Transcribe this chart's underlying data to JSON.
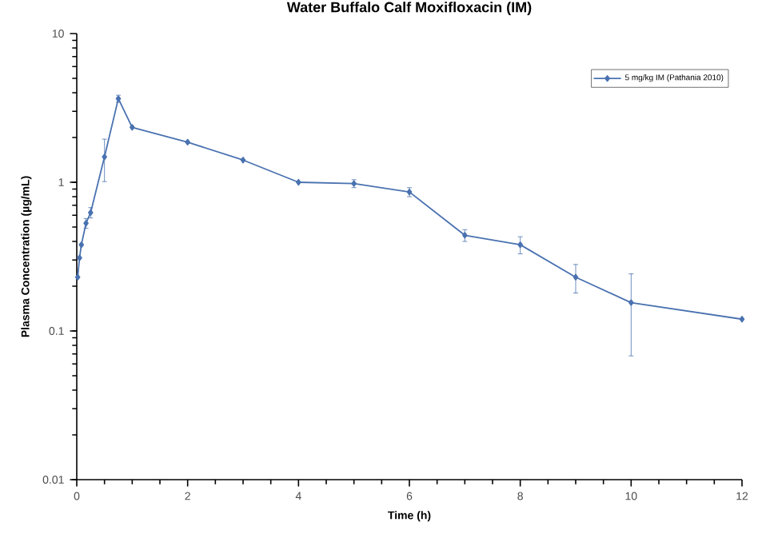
{
  "chart_data": {
    "type": "line",
    "title": "Water Buffalo Calf Moxifloxacin (IM)",
    "xlabel": "Time (h)",
    "ylabel": "Plasma Concentration (µg/mL)",
    "x": [
      0.017,
      0.05,
      0.083,
      0.167,
      0.25,
      0.5,
      0.75,
      1,
      2,
      3,
      4,
      5,
      6,
      7,
      8,
      9,
      10,
      12
    ],
    "series": [
      {
        "name": "5 mg/kg IM (Pathania 2010)",
        "color": "#4a72b0",
        "values": [
          0.23,
          0.31,
          0.38,
          0.53,
          0.625,
          1.48,
          3.65,
          2.34,
          1.86,
          1.41,
          1.0,
          0.98,
          0.86,
          0.44,
          0.38,
          0.23,
          0.155,
          0.12
        ],
        "errors": [
          null,
          null,
          null,
          0.04,
          0.05,
          0.47,
          0.2,
          null,
          null,
          null,
          null,
          0.06,
          0.06,
          0.04,
          0.05,
          0.05,
          0.087,
          null
        ]
      }
    ],
    "log": true,
    "xlim": [
      0,
      12
    ],
    "ylim": [
      0.01,
      10
    ],
    "xticks": [
      0,
      2,
      4,
      6,
      8,
      10,
      12
    ],
    "yticks": [
      0.01,
      0.1,
      1,
      10
    ],
    "legend": "top right",
    "marker": "diamond",
    "line_style": "solid",
    "grid": false
  }
}
